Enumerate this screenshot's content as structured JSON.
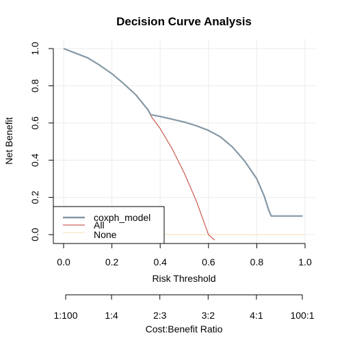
{
  "chart_data": {
    "type": "line",
    "title": "Decision Curve Analysis",
    "xlabel": "Risk Threshold",
    "ylabel": "Net Benefit",
    "xlim": [
      0,
      1
    ],
    "ylim": [
      0,
      1
    ],
    "grid": true,
    "x_ticks": [
      "0.0",
      "0.2",
      "0.4",
      "0.6",
      "0.8",
      "1.0"
    ],
    "y_ticks": [
      "0.0",
      "0.2",
      "0.4",
      "0.6",
      "0.8",
      "1.0"
    ],
    "cost_benefit_axis": {
      "label": "Cost:Benefit Ratio",
      "ticks": [
        {
          "x": 0.0099,
          "label": "1:100"
        },
        {
          "x": 0.2,
          "label": "1:4"
        },
        {
          "x": 0.4,
          "label": "2:3"
        },
        {
          "x": 0.6,
          "label": "3:2"
        },
        {
          "x": 0.8,
          "label": "4:1"
        },
        {
          "x": 0.9901,
          "label": "100:1"
        }
      ]
    },
    "legend": {
      "position": "bottom-left",
      "entries": [
        "coxph_model",
        "All",
        "None"
      ]
    },
    "series": [
      {
        "name": "coxph_model",
        "color": "#8497a4",
        "x": [
          0.0,
          0.05,
          0.1,
          0.15,
          0.2,
          0.25,
          0.3,
          0.35,
          0.36,
          0.4,
          0.45,
          0.5,
          0.55,
          0.6,
          0.65,
          0.7,
          0.75,
          0.8,
          0.83,
          0.85,
          0.86,
          0.9,
          0.95,
          0.99
        ],
        "y": [
          1.0,
          0.975,
          0.95,
          0.91,
          0.865,
          0.81,
          0.75,
          0.67,
          0.645,
          0.635,
          0.62,
          0.605,
          0.585,
          0.56,
          0.525,
          0.47,
          0.395,
          0.3,
          0.21,
          0.13,
          0.1,
          0.1,
          0.1,
          0.1
        ]
      },
      {
        "name": "All",
        "color": "#c0392b",
        "x": [
          0.36,
          0.4,
          0.45,
          0.5,
          0.55,
          0.6,
          0.625
        ],
        "y": [
          0.64,
          0.57,
          0.46,
          0.33,
          0.18,
          0.0,
          -0.03
        ]
      },
      {
        "name": "None",
        "color": "#f5deb3",
        "x": [
          0.0,
          1.0
        ],
        "y": [
          0.0,
          0.0
        ]
      }
    ]
  }
}
